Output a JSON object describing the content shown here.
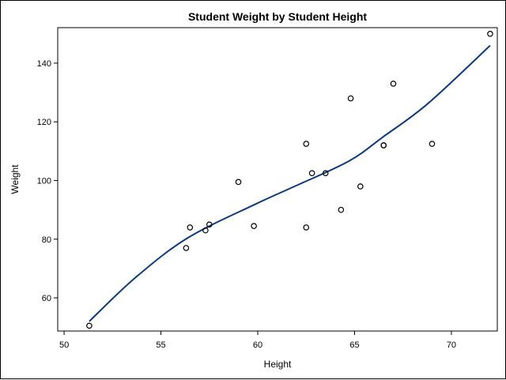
{
  "chart_data": {
    "type": "scatter",
    "title": "Student Weight by Student Height",
    "xlabel": "Height",
    "ylabel": "Weight",
    "xlim": [
      49.67,
      72.37
    ],
    "ylim": [
      48.7,
      152.1
    ],
    "xticks": [
      50,
      55,
      60,
      65,
      70
    ],
    "yticks": [
      60,
      80,
      100,
      120,
      140
    ],
    "grid": false,
    "points": [
      [
        69.0,
        112.5
      ],
      [
        56.5,
        84.0
      ],
      [
        65.3,
        98.0
      ],
      [
        62.8,
        102.5
      ],
      [
        63.5,
        102.5
      ],
      [
        57.3,
        83.0
      ],
      [
        59.8,
        84.5
      ],
      [
        62.5,
        112.5
      ],
      [
        62.5,
        84.0
      ],
      [
        59.0,
        99.5
      ],
      [
        51.3,
        50.5
      ],
      [
        64.3,
        90.0
      ],
      [
        56.3,
        77.0
      ],
      [
        66.5,
        112.0
      ],
      [
        72.0,
        150.0
      ],
      [
        64.8,
        128.0
      ],
      [
        67.0,
        133.0
      ],
      [
        57.5,
        85.0
      ],
      [
        66.5,
        112.0
      ]
    ],
    "fit_curve": [
      [
        51.3,
        52
      ],
      [
        53.7,
        67
      ],
      [
        56.4,
        80.5
      ],
      [
        59.9,
        92
      ],
      [
        61.8,
        97.7
      ],
      [
        64.7,
        106.6
      ],
      [
        66.5,
        115
      ],
      [
        68.8,
        126.3
      ],
      [
        72,
        146
      ]
    ],
    "colors": {
      "fit": "#0b3a7e",
      "marker": "#000000"
    }
  }
}
